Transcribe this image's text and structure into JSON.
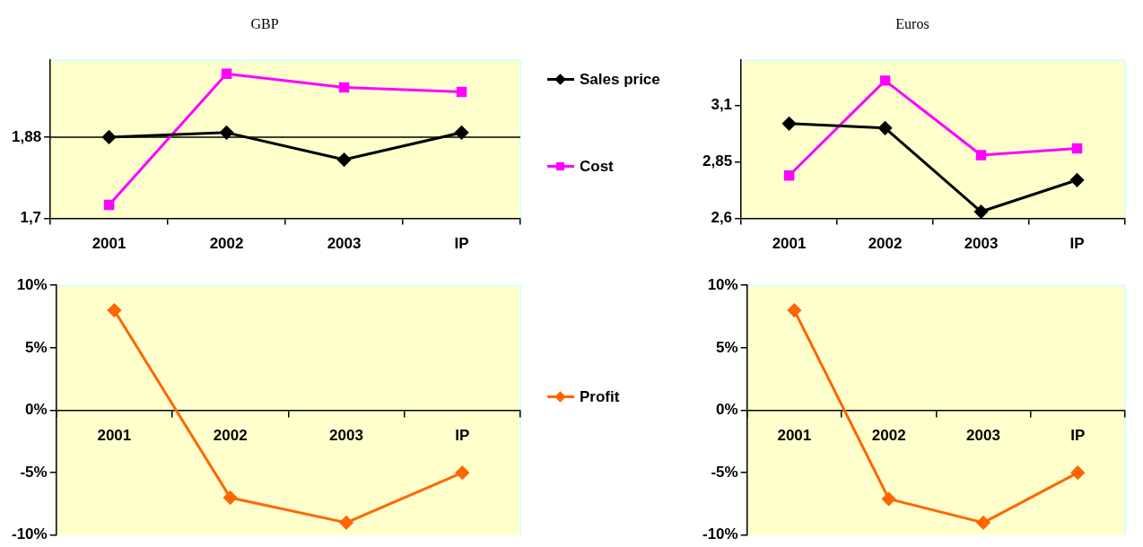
{
  "chart_data": [
    {
      "type": "line",
      "title": "GBP",
      "categories": [
        "2001",
        "2002",
        "2003",
        "IP"
      ],
      "ylim": [
        1.7,
        2.05
      ],
      "yticks": [
        {
          "value": 1.7,
          "label": "1,7"
        },
        {
          "value": 1.88,
          "label": "1,88"
        }
      ],
      "legend": "right",
      "ref_lines": [
        {
          "axis": "y",
          "value": 1.88,
          "color": "#000000"
        }
      ],
      "series": [
        {
          "name": "Sales price",
          "color": "#000000",
          "marker": "diamond",
          "values": [
            1.88,
            1.89,
            1.83,
            1.89
          ]
        },
        {
          "name": "Cost",
          "color": "#ff00ff",
          "marker": "square",
          "values": [
            1.73,
            2.02,
            1.99,
            1.98
          ]
        }
      ]
    },
    {
      "type": "line",
      "title": "Euros",
      "categories": [
        "2001",
        "2002",
        "2003",
        "IP"
      ],
      "ylim": [
        2.6,
        3.3
      ],
      "yticks": [
        {
          "value": 2.6,
          "label": "2,6"
        },
        {
          "value": 2.85,
          "label": "2,85"
        },
        {
          "value": 3.1,
          "label": "3,1"
        }
      ],
      "series": [
        {
          "color": "#000000",
          "marker": "diamond",
          "values": [
            3.02,
            3.0,
            2.63,
            2.77
          ]
        },
        {
          "color": "#ff00ff",
          "marker": "square",
          "values": [
            2.79,
            3.21,
            2.88,
            2.91
          ]
        }
      ]
    },
    {
      "type": "line",
      "categories": [
        "2001",
        "2002",
        "2003",
        "IP"
      ],
      "ylim": [
        -10,
        10
      ],
      "yticks": [
        {
          "value": -10,
          "label": "-10%"
        },
        {
          "value": -5,
          "label": "-5%"
        },
        {
          "value": 0,
          "label": "0%"
        },
        {
          "value": 5,
          "label": "5%"
        },
        {
          "value": 10,
          "label": "10%"
        }
      ],
      "legend": "right",
      "series": [
        {
          "name": "Profit",
          "color": "#ff6600",
          "marker": "diamond",
          "values": [
            8,
            -7,
            -9,
            -5
          ]
        }
      ]
    },
    {
      "type": "line",
      "categories": [
        "2001",
        "2002",
        "2003",
        "IP"
      ],
      "ylim": [
        -10,
        10
      ],
      "yticks": [
        {
          "value": -10,
          "label": "-10%"
        },
        {
          "value": -5,
          "label": "-5%"
        },
        {
          "value": 0,
          "label": "0%"
        },
        {
          "value": 5,
          "label": "5%"
        },
        {
          "value": 10,
          "label": "10%"
        }
      ],
      "series": [
        {
          "color": "#ff6600",
          "marker": "diamond",
          "values": [
            8,
            -7.1,
            -9,
            -5
          ]
        }
      ]
    }
  ]
}
